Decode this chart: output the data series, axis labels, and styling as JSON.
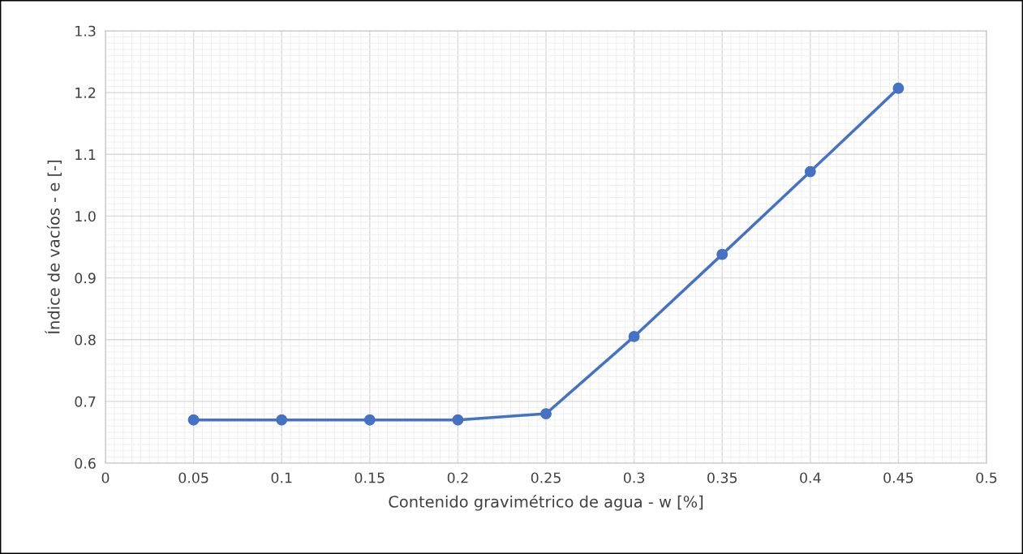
{
  "chart_data": {
    "type": "line",
    "xlabel": "Contenido gravimétrico de agua - w [%]",
    "ylabel": "Índice de vacíos - e [-]",
    "x": [
      0.05,
      0.1,
      0.15,
      0.2,
      0.25,
      0.3,
      0.35,
      0.4,
      0.45
    ],
    "series": [
      {
        "color": "#4472c4",
        "values": [
          0.67,
          0.67,
          0.67,
          0.67,
          0.68,
          0.805,
          0.938,
          1.072,
          1.207
        ]
      }
    ],
    "xlim": [
      0,
      0.5
    ],
    "xticks": [
      0,
      0.05,
      0.1,
      0.15,
      0.2,
      0.25,
      0.3,
      0.35,
      0.4,
      0.45,
      0.5
    ],
    "ylim": [
      0.6,
      1.3
    ],
    "yticks": [
      {
        "value": 0.6,
        "label": "0.6"
      },
      {
        "value": 0.7,
        "label": "0.7"
      },
      {
        "value": 0.8,
        "label": "0.8"
      },
      {
        "value": 0.9,
        "label": "0.9"
      },
      {
        "value": 1.0,
        "label": "1.0"
      },
      {
        "value": 1.1,
        "label": "1.1"
      },
      {
        "value": 1.2,
        "label": "1.2"
      },
      {
        "value": 1.3,
        "label": "1.3"
      }
    ],
    "grid": true,
    "marker": "circle",
    "line_style": "solid"
  }
}
